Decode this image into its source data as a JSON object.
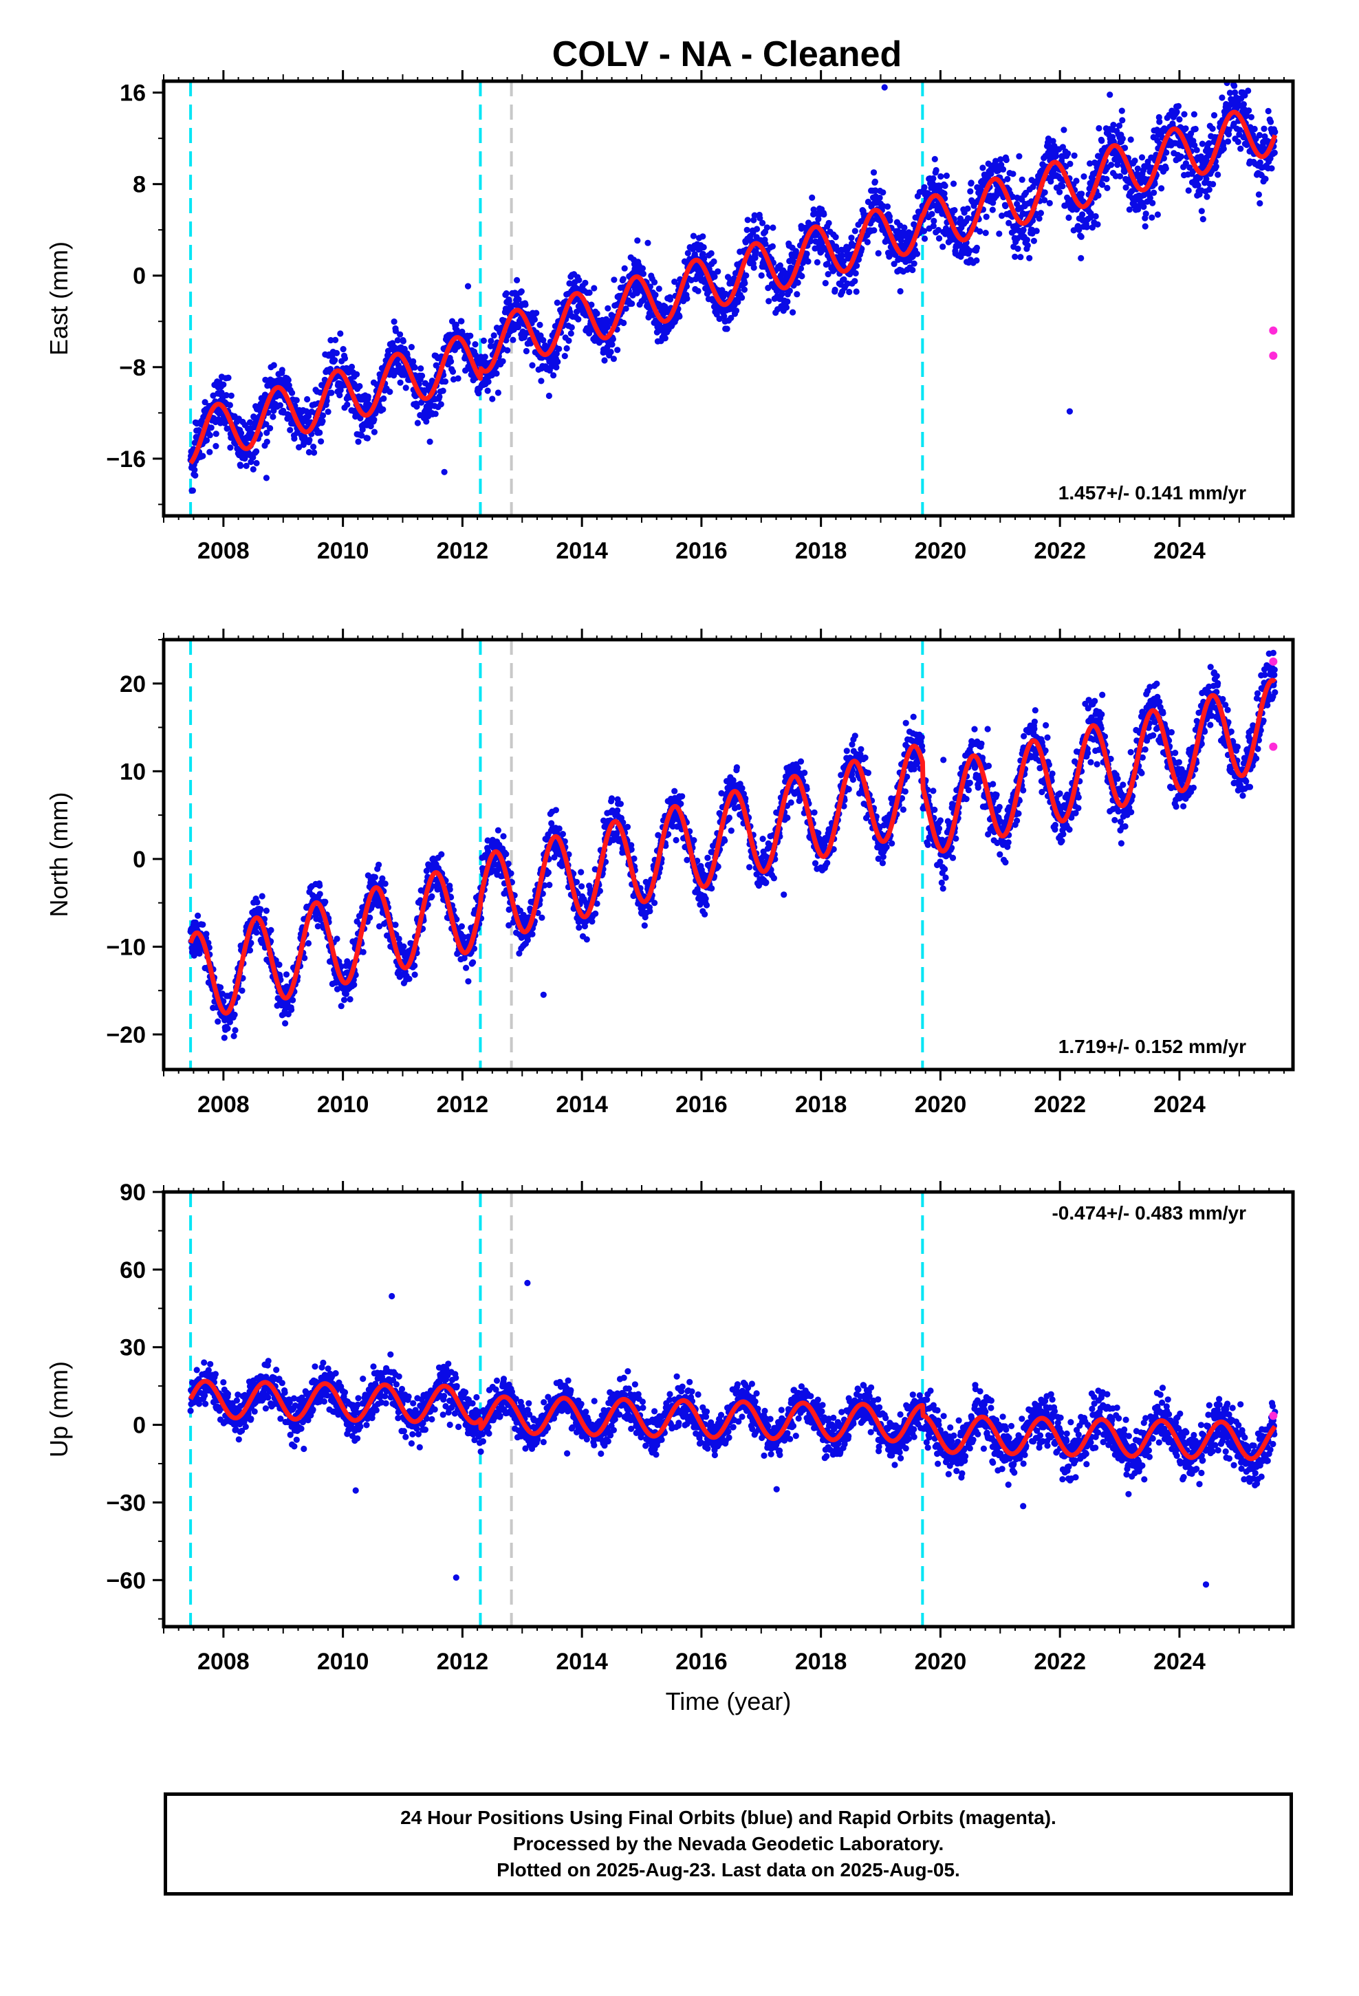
{
  "title": "COLV  - NA - Cleaned",
  "xlabel": "Time (year)",
  "colors": {
    "final": "#0a0ae6",
    "rapid": "#ff2ad8",
    "model": "#ff1a1a",
    "offset_equipment": "#00e5f5",
    "offset_other": "#c8c8c8"
  },
  "chart_data": [
    {
      "type": "scatter",
      "panel": "east",
      "ylabel": "East (mm)",
      "rate_label": "1.457+/- 0.141 mm/yr",
      "xlim": [
        2007.0,
        2025.9
      ],
      "ylim": [
        -21,
        17
      ],
      "yticks": [
        16,
        8,
        0,
        -8,
        -16
      ],
      "ytick_labels": [
        "16",
        "8",
        "0",
        "−8",
        "−16"
      ],
      "xticks": [
        2008,
        2010,
        2012,
        2014,
        2016,
        2018,
        2020,
        2022,
        2024
      ],
      "xtick_labels": [
        "2008",
        "2010",
        "2012",
        "2014",
        "2016",
        "2018",
        "2020",
        "2022",
        "2024"
      ],
      "offsets_equipment": [
        2007.45,
        2012.3,
        2019.7
      ],
      "offsets_other": [
        2012.82
      ],
      "rapid_points": [
        [
          2025.57,
          -4.8
        ],
        [
          2025.57,
          -7.0
        ]
      ],
      "model": {
        "segments": [
          {
            "from": 2007.45,
            "to": 2012.3,
            "intercept_at_start": -14.2
          },
          {
            "from": 2012.3,
            "to": 2019.7,
            "intercept_at_start": -6.2
          },
          {
            "from": 2019.7,
            "to": 2025.6,
            "intercept_at_start": 4.4
          }
        ],
        "rate": 1.457,
        "annual_amplitude": 2.3,
        "annual_peak": 0.9
      }
    },
    {
      "type": "scatter",
      "panel": "north",
      "ylabel": "North (mm)",
      "rate_label": "1.719+/- 0.152 mm/yr",
      "xlim": [
        2007.0,
        2025.9
      ],
      "ylim": [
        -24,
        25
      ],
      "yticks": [
        20,
        10,
        0,
        -10,
        -20
      ],
      "ytick_labels": [
        "20",
        "10",
        "0",
        "−10",
        "−20"
      ],
      "xticks": [
        2008,
        2010,
        2012,
        2014,
        2016,
        2018,
        2020,
        2022,
        2024
      ],
      "xtick_labels": [
        "2008",
        "2010",
        "2012",
        "2014",
        "2016",
        "2018",
        "2020",
        "2022",
        "2024"
      ],
      "offsets_equipment": [
        2007.45,
        2012.3,
        2019.7
      ],
      "offsets_other": [
        2012.82
      ],
      "rapid_points": [
        [
          2025.57,
          22.5
        ],
        [
          2025.57,
          12.8
        ]
      ],
      "model": {
        "segments": [
          {
            "from": 2007.45,
            "to": 2012.3,
            "intercept_at_start": -13.6
          },
          {
            "from": 2012.3,
            "to": 2019.7,
            "intercept_at_start": -4.6
          },
          {
            "from": 2019.7,
            "to": 2025.6,
            "intercept_at_start": 5.3
          }
        ],
        "rate": 1.719,
        "annual_amplitude": 5.0,
        "annual_peak": 0.55
      }
    },
    {
      "type": "scatter",
      "panel": "up",
      "ylabel": "Up (mm)",
      "rate_label": "-0.474+/- 0.483 mm/yr",
      "xlim": [
        2007.0,
        2025.9
      ],
      "ylim": [
        -78,
        90
      ],
      "yticks": [
        90,
        60,
        30,
        0,
        -30,
        -60
      ],
      "ytick_labels": [
        "90",
        "60",
        "30",
        "0",
        "−30",
        "−60"
      ],
      "xticks": [
        2008,
        2010,
        2012,
        2014,
        2016,
        2018,
        2020,
        2022,
        2024
      ],
      "xtick_labels": [
        "2008",
        "2010",
        "2012",
        "2014",
        "2016",
        "2018",
        "2020",
        "2022",
        "2024"
      ],
      "offsets_equipment": [
        2007.45,
        2012.3,
        2019.7
      ],
      "offsets_other": [
        2012.82
      ],
      "rapid_points": [
        [
          2025.57,
          3.5
        ]
      ],
      "model": {
        "segments": [
          {
            "from": 2007.45,
            "to": 2012.3,
            "intercept_at_start": 10.0
          },
          {
            "from": 2012.3,
            "to": 2019.7,
            "intercept_at_start": 4.0
          },
          {
            "from": 2019.7,
            "to": 2025.6,
            "intercept_at_start": -3.5
          }
        ],
        "rate": -0.474,
        "annual_amplitude": 7.0,
        "annual_peak": 0.7
      }
    }
  ],
  "footer": {
    "line1": "24 Hour Positions Using Final Orbits (blue) and Rapid Orbits (magenta).",
    "line2": "Processed by the Nevada Geodetic Laboratory.",
    "line3": "Plotted on 2025-Aug-23. Last data on 2025-Aug-05."
  }
}
